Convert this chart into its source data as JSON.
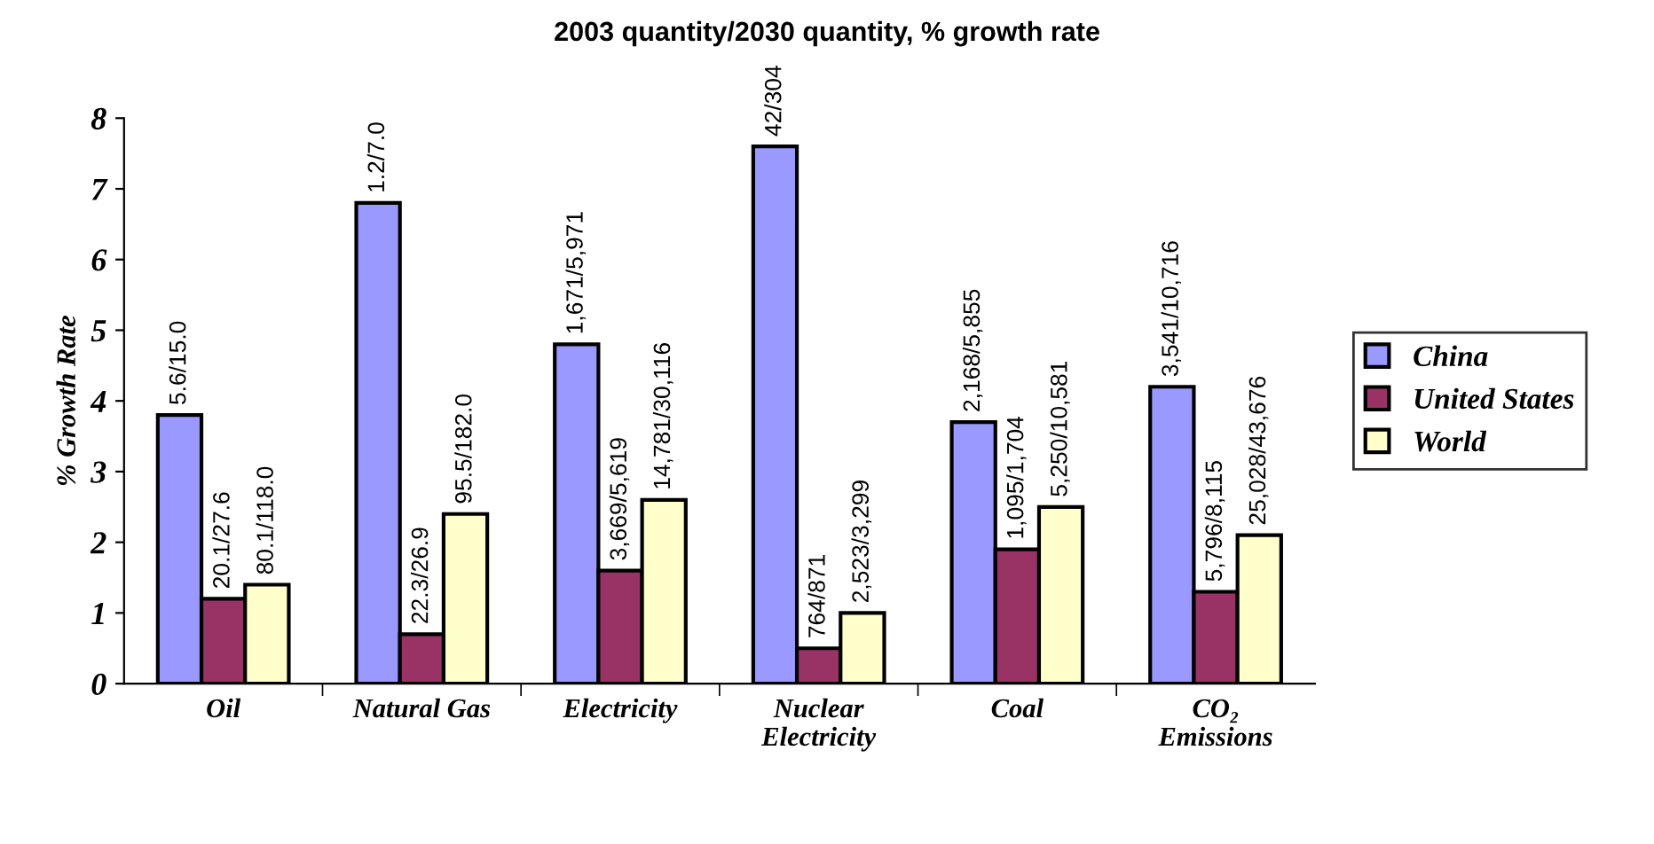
{
  "chart_data": {
    "type": "bar",
    "title": "2003 quantity/2030 quantity, % growth rate",
    "ylabel": "% Growth Rate",
    "categories": [
      "Oil",
      "Natural Gas",
      "Electricity",
      "Nuclear\nElectricity",
      "Coal",
      "CO₂\nEmissions"
    ],
    "series": [
      {
        "name": "China",
        "color": "#9999ff",
        "values": [
          3.8,
          6.8,
          4.8,
          7.6,
          3.7,
          4.2
        ],
        "value_labels": [
          "5.6/15.0",
          "1.2/7.0",
          "1,671/5,971",
          "42/304",
          "2,168/5,855",
          "3,541/10,716"
        ]
      },
      {
        "name": "United States",
        "color": "#993366",
        "values": [
          1.2,
          0.7,
          1.6,
          0.5,
          1.9,
          1.3
        ],
        "value_labels": [
          "20.1/27.6",
          "22.3/26.9",
          "3,669/5,619",
          "764/871",
          "1,095/1,704",
          "5,796/8,115"
        ]
      },
      {
        "name": "World",
        "color": "#ffffcc",
        "values": [
          1.4,
          2.4,
          2.6,
          1.0,
          2.5,
          2.1
        ],
        "value_labels": [
          "80.1/118.0",
          "95.5/182.0",
          "14,781/30,116",
          "2,523/3,299",
          "5,250/10,581",
          "25,028/43,676"
        ]
      }
    ],
    "ylim": [
      0,
      8
    ],
    "yticks": [
      0,
      1,
      2,
      3,
      4,
      5,
      6,
      7,
      8
    ],
    "grid": false,
    "legend": "right"
  }
}
